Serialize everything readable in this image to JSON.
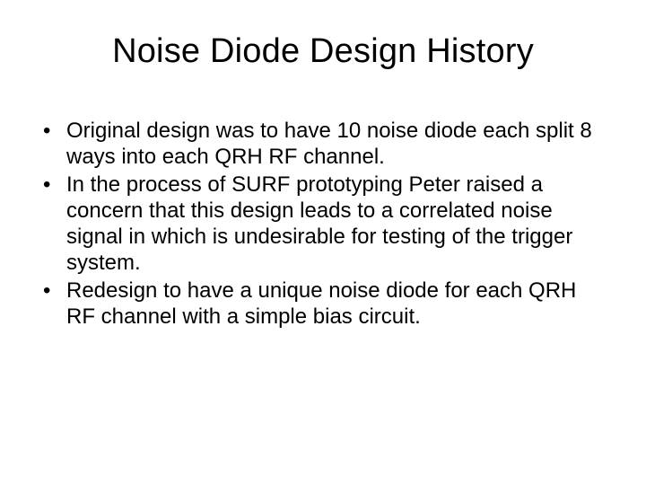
{
  "slide": {
    "title": "Noise Diode Design History",
    "title_fontsize": 38,
    "body_fontsize": 24,
    "text_color": "#000000",
    "background_color": "#ffffff",
    "bullets": [
      "Original design was to have 10 noise diode each split 8 ways into each QRH RF channel.",
      "In the process of SURF prototyping Peter raised a concern that this design leads to a correlated noise signal in which is undesirable for testing of the trigger system.",
      "Redesign to have a unique noise diode for each QRH RF channel with a simple bias circuit."
    ]
  }
}
